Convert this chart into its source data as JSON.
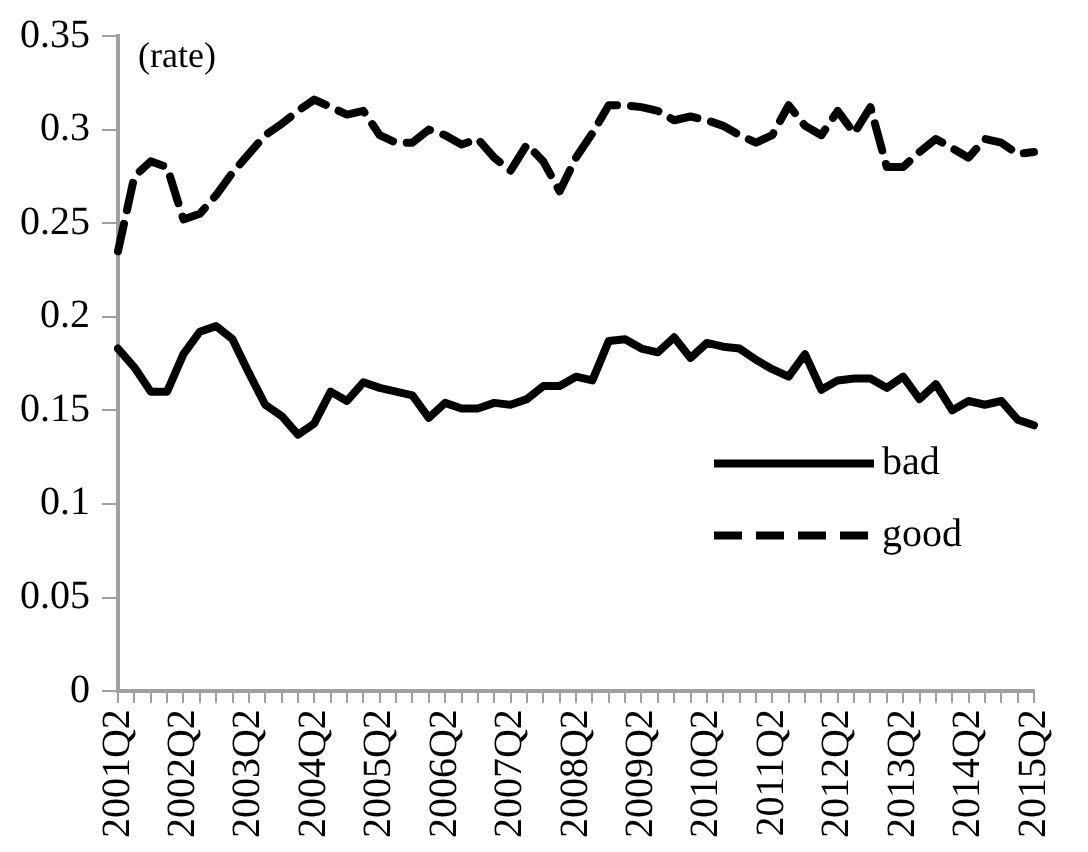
{
  "chart_data": {
    "type": "line",
    "categories": [
      "2001Q2",
      null,
      null,
      null,
      "2002Q2",
      null,
      null,
      null,
      "2003Q2",
      null,
      null,
      null,
      "2004Q2",
      null,
      null,
      null,
      "2005Q2",
      null,
      null,
      null,
      "2006Q2",
      null,
      null,
      null,
      "2007Q2",
      null,
      null,
      null,
      "2008Q2",
      null,
      null,
      null,
      "2009Q2",
      null,
      null,
      null,
      "2010Q2",
      null,
      null,
      null,
      "2011Q2",
      null,
      null,
      null,
      "2012Q2",
      null,
      null,
      null,
      "2013Q2",
      null,
      null,
      null,
      "2014Q2",
      null,
      null,
      null,
      "2015Q2"
    ],
    "series": [
      {
        "name": "bad",
        "color": "#000000",
        "line_style": "solid",
        "values": [
          0.183,
          0.173,
          0.16,
          0.16,
          0.18,
          0.192,
          0.195,
          0.188,
          0.17,
          0.153,
          0.147,
          0.137,
          0.143,
          0.16,
          0.155,
          0.165,
          0.162,
          0.16,
          0.158,
          0.146,
          0.154,
          0.151,
          0.151,
          0.154,
          0.153,
          0.156,
          0.163,
          0.163,
          0.168,
          0.166,
          0.187,
          0.188,
          0.183,
          0.181,
          0.189,
          0.178,
          0.186,
          0.184,
          0.183,
          0.177,
          0.172,
          0.168,
          0.18,
          0.161,
          0.166,
          0.167,
          0.167,
          0.162,
          0.168,
          0.156,
          0.164,
          0.15,
          0.155,
          0.153,
          0.155,
          0.145,
          0.142
        ]
      },
      {
        "name": "good",
        "color": "#000000",
        "line_style": "dashed",
        "values": [
          0.235,
          0.275,
          0.283,
          0.28,
          0.252,
          0.255,
          0.265,
          0.277,
          0.287,
          0.297,
          0.303,
          0.31,
          0.316,
          0.312,
          0.308,
          0.31,
          0.297,
          0.293,
          0.293,
          0.3,
          0.297,
          0.292,
          0.295,
          0.285,
          0.278,
          0.292,
          0.283,
          0.267,
          0.285,
          0.298,
          0.313,
          0.313,
          0.312,
          0.31,
          0.305,
          0.307,
          0.305,
          0.302,
          0.297,
          0.293,
          0.297,
          0.313,
          0.302,
          0.297,
          0.31,
          0.298,
          0.312,
          0.28,
          0.28,
          0.288,
          0.295,
          0.29,
          0.285,
          0.295,
          0.293,
          0.287,
          0.288
        ]
      }
    ],
    "ylim": [
      0,
      0.35
    ],
    "yticks": [
      0,
      0.05,
      0.1,
      0.15,
      0.2,
      0.25,
      0.3,
      0.35
    ],
    "annotations": [
      "(rate)"
    ],
    "grid": false,
    "legend": "right",
    "marker": "none"
  }
}
